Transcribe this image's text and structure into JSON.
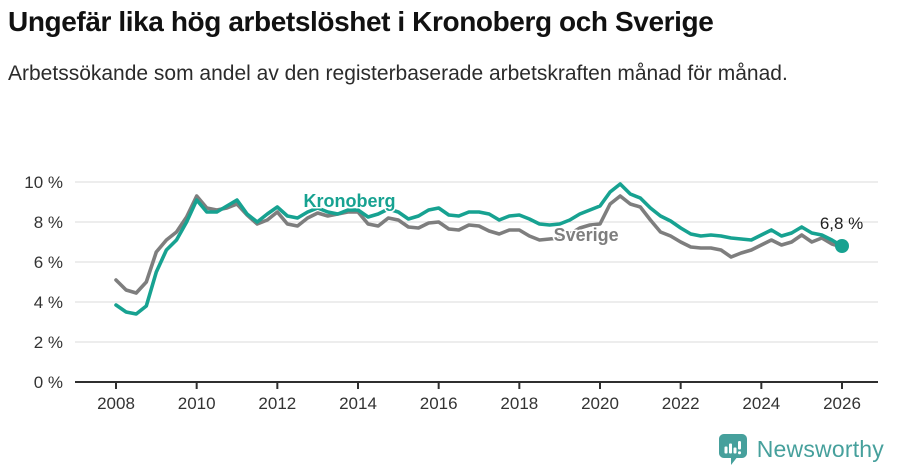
{
  "header": {
    "title": "Ungefär lika hög arbetslöshet i Kronoberg och Sverige",
    "subtitle": "Arbetssökande som andel av den registerbaserade arbetskraften månad för månad."
  },
  "footer": {
    "brand": "Newsworthy",
    "logo_icon": "bar-chart-speech-bubble-icon"
  },
  "theme": {
    "kronoberg_color": "#17A291",
    "sverige_color": "#7E7E7E",
    "grid_color": "#DBDBDB",
    "axis_color": "#2F2F2F",
    "tick_text_color": "#333333",
    "end_label_color": "#1F1F1F",
    "logo_color": "#46A09C",
    "background": "#FFFFFF"
  },
  "chart_data": {
    "type": "line",
    "title": "Ungefär lika hög arbetslöshet i Kronoberg och Sverige",
    "xlabel": "",
    "ylabel": "",
    "y_unit": "%",
    "ylim": [
      0,
      10
    ],
    "xlim": [
      2008,
      2026
    ],
    "grid": "horizontal",
    "y_ticks": [
      0,
      2,
      4,
      6,
      8,
      10
    ],
    "y_tick_suffix": " %",
    "x_ticks": [
      2008,
      2010,
      2012,
      2014,
      2016,
      2018,
      2020,
      2022,
      2024,
      2026
    ],
    "legend_position": "inline-labels",
    "series": [
      {
        "name": "Kronoberg",
        "color": "#17A291",
        "x_start": 2008,
        "x_step": 0.25,
        "values": [
          3.85,
          3.5,
          3.4,
          3.8,
          5.5,
          6.6,
          7.1,
          8.0,
          9.1,
          8.5,
          8.5,
          8.8,
          9.1,
          8.4,
          8.0,
          8.4,
          8.75,
          8.3,
          8.2,
          8.5,
          8.7,
          8.5,
          8.4,
          8.6,
          8.6,
          8.25,
          8.4,
          8.65,
          8.5,
          8.15,
          8.3,
          8.6,
          8.7,
          8.35,
          8.3,
          8.5,
          8.5,
          8.4,
          8.1,
          8.3,
          8.35,
          8.15,
          7.9,
          7.85,
          7.9,
          8.1,
          8.4,
          8.6,
          8.8,
          9.5,
          9.9,
          9.4,
          9.2,
          8.7,
          8.3,
          8.05,
          7.7,
          7.4,
          7.3,
          7.35,
          7.3,
          7.2,
          7.15,
          7.1,
          7.35,
          7.6,
          7.3,
          7.45,
          7.75,
          7.45,
          7.35,
          7.1,
          6.8
        ],
        "label": {
          "text": "Kronoberg",
          "x": 2012.65,
          "y": 8.75
        },
        "end_dot": true,
        "end_label": {
          "text": "6,8 %",
          "x": 2025.45,
          "y": 7.65
        }
      },
      {
        "name": "Sverige",
        "color": "#7E7E7E",
        "x_start": 2008,
        "x_step": 0.25,
        "values": [
          5.1,
          4.6,
          4.45,
          5.0,
          6.5,
          7.1,
          7.5,
          8.25,
          9.3,
          8.7,
          8.6,
          8.7,
          8.9,
          8.35,
          7.9,
          8.1,
          8.5,
          7.9,
          7.8,
          8.2,
          8.45,
          8.3,
          8.4,
          8.5,
          8.5,
          7.9,
          7.8,
          8.2,
          8.1,
          7.75,
          7.7,
          7.95,
          8.0,
          7.65,
          7.6,
          7.85,
          7.8,
          7.55,
          7.4,
          7.6,
          7.6,
          7.3,
          7.1,
          7.15,
          7.2,
          7.4,
          7.7,
          7.85,
          7.9,
          8.9,
          9.3,
          8.9,
          8.75,
          8.1,
          7.5,
          7.3,
          7.0,
          6.75,
          6.7,
          6.7,
          6.6,
          6.25,
          6.45,
          6.6,
          6.85,
          7.1,
          6.85,
          7.0,
          7.35,
          7.0,
          7.2,
          6.9,
          6.75
        ],
        "label": {
          "text": "Sverige",
          "x": 2018.85,
          "y": 7.05
        },
        "end_dot": false
      }
    ]
  }
}
